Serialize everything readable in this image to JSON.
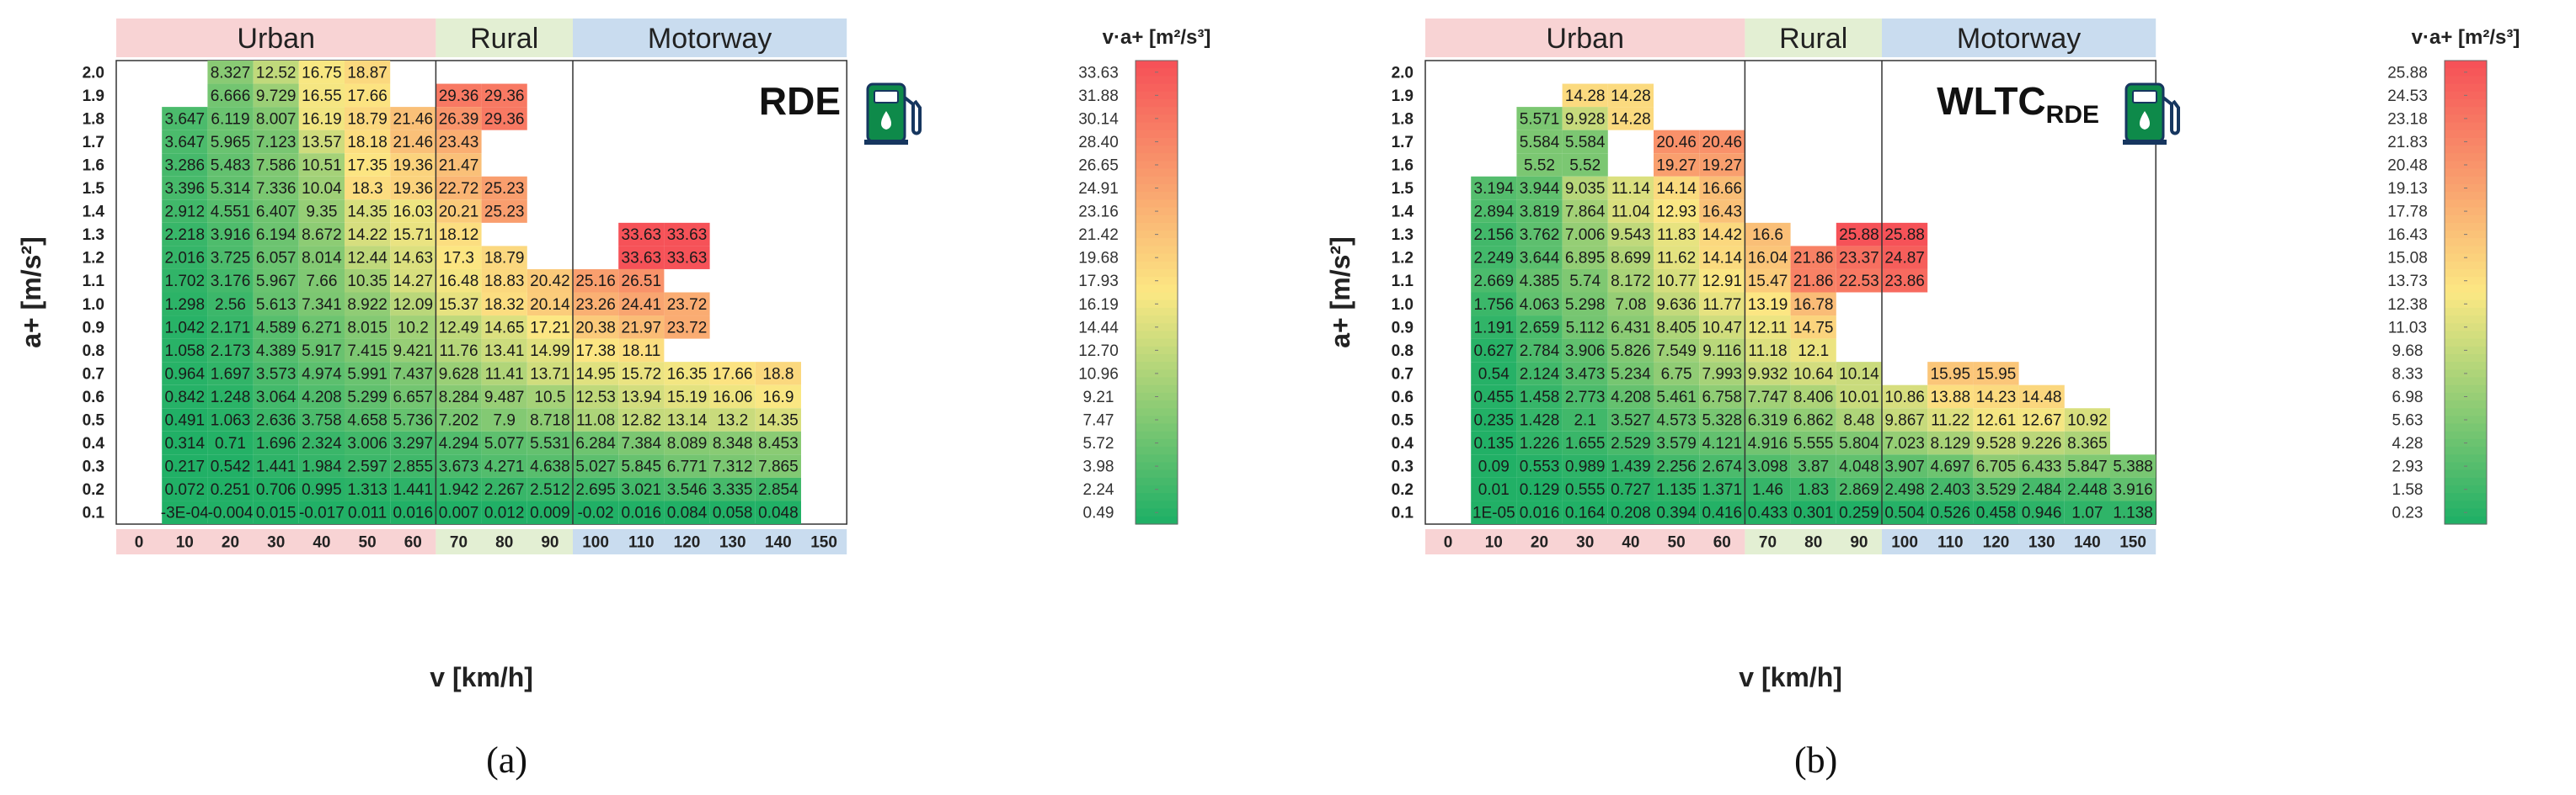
{
  "chart_data": [
    {
      "type": "heatmap",
      "panel_label": "(a)",
      "tag": "RDE",
      "tag_sub": "",
      "xlabel": "v [km/h]",
      "ylabel": "a+ [m/s²]",
      "colorbar_title": "v·a+ [m²/s³]",
      "regions": [
        {
          "name": "Urban",
          "x_from": 0,
          "x_to": 60,
          "color": "#f8d3d4"
        },
        {
          "name": "Rural",
          "x_from": 70,
          "x_to": 90,
          "color": "#e3efd3"
        },
        {
          "name": "Motorway",
          "x_from": 100,
          "x_to": 150,
          "color": "#c9dcef"
        }
      ],
      "x_ticks": [
        "0",
        "10",
        "20",
        "30",
        "40",
        "50",
        "60",
        "70",
        "80",
        "90",
        "100",
        "110",
        "120",
        "130",
        "140",
        "150"
      ],
      "y_ticks": [
        "2.0",
        "1.9",
        "1.8",
        "1.7",
        "1.6",
        "1.5",
        "1.4",
        "1.3",
        "1.2",
        "1.1",
        "1.0",
        "0.9",
        "0.8",
        "0.7",
        "0.6",
        "0.5",
        "0.4",
        "0.3",
        "0.2",
        "0.1"
      ],
      "colorbar_labels": [
        "33.63",
        "31.88",
        "30.14",
        "28.40",
        "26.65",
        "24.91",
        "23.16",
        "21.42",
        "19.68",
        "17.93",
        "16.19",
        "14.44",
        "12.70",
        "10.96",
        "9.21",
        "7.47",
        "5.72",
        "3.98",
        "2.24",
        "0.49"
      ],
      "vmin": 0.49,
      "vmax": 33.63,
      "cells": [
        [
          "",
          "",
          "8.327",
          "12.52",
          "16.75",
          "18.87",
          "",
          "",
          "",
          "",
          "",
          "",
          "",
          "",
          "",
          ""
        ],
        [
          "",
          "",
          "6.666",
          "9.729",
          "16.55",
          "17.66",
          "",
          "29.36",
          "29.36",
          "",
          "",
          "",
          "",
          "",
          "",
          ""
        ],
        [
          "",
          "3.647",
          "6.119",
          "8.007",
          "16.19",
          "18.79",
          "21.46",
          "26.39",
          "29.36",
          "",
          "",
          "",
          "",
          "",
          "",
          ""
        ],
        [
          "",
          "3.647",
          "5.965",
          "7.123",
          "13.57",
          "18.18",
          "21.46",
          "23.43",
          "",
          "",
          "",
          "",
          "",
          "",
          "",
          ""
        ],
        [
          "",
          "3.286",
          "5.483",
          "7.586",
          "10.51",
          "17.35",
          "19.36",
          "21.47",
          "",
          "",
          "",
          "",
          "",
          "",
          "",
          ""
        ],
        [
          "",
          "3.396",
          "5.314",
          "7.336",
          "10.04",
          "18.3",
          "19.36",
          "22.72",
          "25.23",
          "",
          "",
          "",
          "",
          "",
          "",
          ""
        ],
        [
          "",
          "2.912",
          "4.551",
          "6.407",
          "9.35",
          "14.35",
          "16.03",
          "20.21",
          "25.23",
          "",
          "",
          "",
          "",
          "",
          "",
          ""
        ],
        [
          "",
          "2.218",
          "3.916",
          "6.194",
          "8.672",
          "14.22",
          "15.71",
          "18.12",
          "",
          "",
          "",
          "33.63",
          "33.63",
          "",
          "",
          ""
        ],
        [
          "",
          "2.016",
          "3.725",
          "6.057",
          "8.014",
          "12.44",
          "14.63",
          "17.3",
          "18.79",
          "",
          "",
          "33.63",
          "33.63",
          "",
          "",
          ""
        ],
        [
          "",
          "1.702",
          "3.176",
          "5.967",
          "7.66",
          "10.35",
          "14.27",
          "16.48",
          "18.83",
          "20.42",
          "25.16",
          "26.51",
          "",
          "",
          "",
          ""
        ],
        [
          "",
          "1.298",
          "2.56",
          "5.613",
          "7.341",
          "8.922",
          "12.09",
          "15.37",
          "18.32",
          "20.14",
          "23.26",
          "24.41",
          "23.72",
          "",
          "",
          ""
        ],
        [
          "",
          "1.042",
          "2.171",
          "4.589",
          "6.271",
          "8.015",
          "10.2",
          "12.49",
          "14.65",
          "17.21",
          "20.38",
          "21.97",
          "23.72",
          "",
          "",
          ""
        ],
        [
          "",
          "1.058",
          "2.173",
          "4.389",
          "5.917",
          "7.415",
          "9.421",
          "11.76",
          "13.41",
          "14.99",
          "17.38",
          "18.11",
          "",
          "",
          "",
          ""
        ],
        [
          "",
          "0.964",
          "1.697",
          "3.573",
          "4.974",
          "5.991",
          "7.437",
          "9.628",
          "11.41",
          "13.71",
          "14.95",
          "15.72",
          "16.35",
          "17.66",
          "18.8",
          ""
        ],
        [
          "",
          "0.842",
          "1.248",
          "3.064",
          "4.208",
          "5.299",
          "6.657",
          "8.284",
          "9.487",
          "10.5",
          "12.53",
          "13.94",
          "15.19",
          "16.06",
          "16.9",
          ""
        ],
        [
          "",
          "0.491",
          "1.063",
          "2.636",
          "3.758",
          "4.658",
          "5.736",
          "7.202",
          "7.9",
          "8.718",
          "11.08",
          "12.82",
          "13.14",
          "13.2",
          "14.35",
          ""
        ],
        [
          "",
          "0.314",
          "0.71",
          "1.696",
          "2.324",
          "3.006",
          "3.297",
          "4.294",
          "5.077",
          "5.531",
          "6.284",
          "7.384",
          "8.089",
          "8.348",
          "8.453",
          ""
        ],
        [
          "",
          "0.217",
          "0.542",
          "1.441",
          "1.984",
          "2.597",
          "2.855",
          "3.673",
          "4.271",
          "4.638",
          "5.027",
          "5.845",
          "6.771",
          "7.312",
          "7.865",
          ""
        ],
        [
          "",
          "0.072",
          "0.251",
          "0.706",
          "0.995",
          "1.313",
          "1.441",
          "1.942",
          "2.267",
          "2.512",
          "2.695",
          "3.021",
          "3.546",
          "3.335",
          "2.854",
          ""
        ],
        [
          "",
          "-3E-04",
          "-0.004",
          "0.015",
          "-0.017",
          "0.011",
          "0.016",
          "0.007",
          "0.012",
          "0.009",
          "-0.02",
          "0.016",
          "0.084",
          "0.058",
          "0.048",
          ""
        ]
      ]
    },
    {
      "type": "heatmap",
      "panel_label": "(b)",
      "tag": "WLTC",
      "tag_sub": "RDE",
      "xlabel": "v [km/h]",
      "ylabel": "a+ [m/s²]",
      "colorbar_title": "v·a+ [m²/s³]",
      "regions": [
        {
          "name": "Urban",
          "x_from": 0,
          "x_to": 60,
          "color": "#f8d3d4"
        },
        {
          "name": "Rural",
          "x_from": 70,
          "x_to": 90,
          "color": "#e3efd3"
        },
        {
          "name": "Motorway",
          "x_from": 100,
          "x_to": 150,
          "color": "#c9dcef"
        }
      ],
      "x_ticks": [
        "0",
        "10",
        "20",
        "30",
        "40",
        "50",
        "60",
        "70",
        "80",
        "90",
        "100",
        "110",
        "120",
        "130",
        "140",
        "150"
      ],
      "y_ticks": [
        "2.0",
        "1.9",
        "1.8",
        "1.7",
        "1.6",
        "1.5",
        "1.4",
        "1.3",
        "1.2",
        "1.1",
        "1.0",
        "0.9",
        "0.8",
        "0.7",
        "0.6",
        "0.5",
        "0.4",
        "0.3",
        "0.2",
        "0.1"
      ],
      "colorbar_labels": [
        "25.88",
        "24.53",
        "23.18",
        "21.83",
        "20.48",
        "19.13",
        "17.78",
        "16.43",
        "15.08",
        "13.73",
        "12.38",
        "11.03",
        "9.68",
        "8.33",
        "6.98",
        "5.63",
        "4.28",
        "2.93",
        "1.58",
        "0.23"
      ],
      "vmin": 0.23,
      "vmax": 25.88,
      "cells": [
        [
          "",
          "",
          "",
          "",
          "",
          "",
          "",
          "",
          "",
          "",
          "",
          "",
          "",
          "",
          "",
          ""
        ],
        [
          "",
          "",
          "",
          "14.28",
          "14.28",
          "",
          "",
          "",
          "",
          "",
          "",
          "",
          "",
          "",
          "",
          ""
        ],
        [
          "",
          "",
          "5.571",
          "9.928",
          "14.28",
          "",
          "",
          "",
          "",
          "",
          "",
          "",
          "",
          "",
          "",
          ""
        ],
        [
          "",
          "",
          "5.584",
          "5.584",
          "",
          "20.46",
          "20.46",
          "",
          "",
          "",
          "",
          "",
          "",
          "",
          "",
          ""
        ],
        [
          "",
          "",
          "5.52",
          "5.52",
          "",
          "19.27",
          "19.27",
          "",
          "",
          "",
          "",
          "",
          "",
          "",
          "",
          ""
        ],
        [
          "",
          "3.194",
          "3.944",
          "9.035",
          "11.14",
          "14.14",
          "16.66",
          "",
          "",
          "",
          "",
          "",
          "",
          "",
          "",
          ""
        ],
        [
          "",
          "2.894",
          "3.819",
          "7.864",
          "11.04",
          "12.93",
          "16.43",
          "",
          "",
          "",
          "",
          "",
          "",
          "",
          "",
          ""
        ],
        [
          "",
          "2.156",
          "3.762",
          "7.006",
          "9.543",
          "11.83",
          "14.42",
          "16.6",
          "",
          "25.88",
          "25.88",
          "",
          "",
          "",
          "",
          ""
        ],
        [
          "",
          "2.249",
          "3.644",
          "6.895",
          "8.699",
          "11.62",
          "14.14",
          "16.04",
          "21.86",
          "23.37",
          "24.87",
          "",
          "",
          "",
          "",
          ""
        ],
        [
          "",
          "2.669",
          "4.385",
          "5.74",
          "8.172",
          "10.77",
          "12.91",
          "15.47",
          "21.86",
          "22.53",
          "23.86",
          "",
          "",
          "",
          "",
          ""
        ],
        [
          "",
          "1.756",
          "4.063",
          "5.298",
          "7.08",
          "9.636",
          "11.77",
          "13.19",
          "16.78",
          "",
          "",
          "",
          "",
          "",
          "",
          ""
        ],
        [
          "",
          "1.191",
          "2.659",
          "5.112",
          "6.431",
          "8.405",
          "10.47",
          "12.11",
          "14.75",
          "",
          "",
          "",
          "",
          "",
          "",
          ""
        ],
        [
          "",
          "0.627",
          "2.784",
          "3.906",
          "5.826",
          "7.549",
          "9.116",
          "11.18",
          "12.1",
          "",
          "",
          "",
          "",
          "",
          "",
          ""
        ],
        [
          "",
          "0.54",
          "2.124",
          "3.473",
          "5.234",
          "6.75",
          "7.993",
          "9.932",
          "10.64",
          "10.14",
          "",
          "15.95",
          "15.95",
          "",
          "",
          ""
        ],
        [
          "",
          "0.455",
          "1.458",
          "2.773",
          "4.208",
          "5.461",
          "6.758",
          "7.747",
          "8.406",
          "10.01",
          "10.86",
          "13.88",
          "14.23",
          "14.48",
          "",
          ""
        ],
        [
          "",
          "0.235",
          "1.428",
          "2.1",
          "3.527",
          "4.573",
          "5.328",
          "6.319",
          "6.862",
          "8.48",
          "9.867",
          "11.22",
          "12.61",
          "12.67",
          "10.92",
          ""
        ],
        [
          "",
          "0.135",
          "1.226",
          "1.655",
          "2.529",
          "3.579",
          "4.121",
          "4.916",
          "5.555",
          "5.804",
          "7.023",
          "8.129",
          "9.528",
          "9.226",
          "8.365",
          ""
        ],
        [
          "",
          "0.09",
          "0.553",
          "0.989",
          "1.439",
          "2.256",
          "2.674",
          "3.098",
          "3.87",
          "4.048",
          "3.907",
          "4.697",
          "6.705",
          "6.433",
          "5.847",
          "5.388"
        ],
        [
          "",
          "0.01",
          "0.129",
          "0.555",
          "0.727",
          "1.135",
          "1.371",
          "1.46",
          "1.83",
          "2.869",
          "2.498",
          "2.403",
          "3.529",
          "2.484",
          "2.448",
          "3.916"
        ],
        [
          "",
          "1E-05",
          "0.016",
          "0.164",
          "0.208",
          "0.394",
          "0.416",
          "0.433",
          "0.301",
          "0.259",
          "0.504",
          "0.526",
          "0.458",
          "0.946",
          "1.07",
          "1.138"
        ]
      ]
    }
  ]
}
